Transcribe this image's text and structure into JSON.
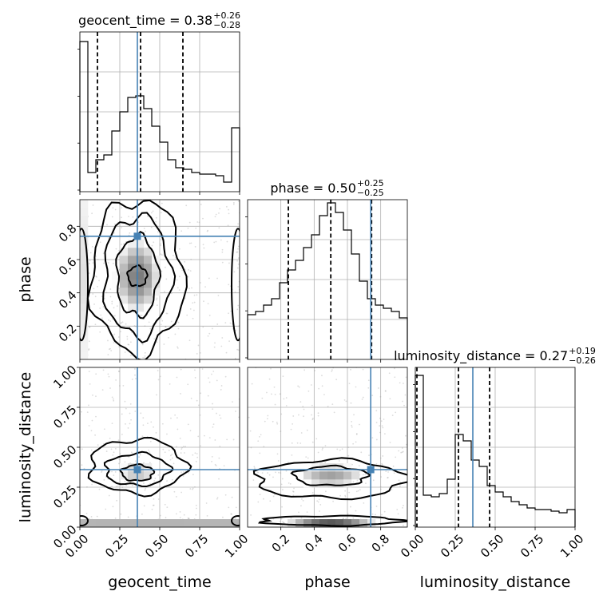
{
  "chart_data": {
    "type": "corner",
    "parameters": [
      "geocent_time",
      "phase",
      "luminosity_distance"
    ],
    "titles": [
      {
        "name": "geocent_time",
        "median": "0.38",
        "plus": "+0.26",
        "minus": "−0.28"
      },
      {
        "name": "phase",
        "median": "0.50",
        "plus": "+0.25",
        "minus": "−0.25"
      },
      {
        "name": "luminosity_distance",
        "median": "0.27",
        "plus": "+0.19",
        "minus": "−0.26"
      }
    ],
    "ranges": {
      "geocent_time": [
        0,
        1
      ],
      "phase": [
        0,
        0.96
      ],
      "luminosity_distance": [
        0,
        1
      ]
    },
    "ticks": {
      "geocent_time": [
        "0.00",
        "0.25",
        "0.50",
        "0.75",
        "1.00"
      ],
      "phase_x": [
        "0.2",
        "0.4",
        "0.6",
        "0.8"
      ],
      "phase_y": [
        "0.2",
        "0.4",
        "0.6",
        "0.8"
      ],
      "luminosity_distance": [
        "0.00",
        "0.25",
        "0.50",
        "0.75",
        "1.00"
      ]
    },
    "truth": {
      "geocent_time": 0.36,
      "phase": 0.74,
      "luminosity_distance": 0.36
    },
    "quantiles": {
      "geocent_time": [
        0.11,
        0.38,
        0.645
      ],
      "phase": [
        0.245,
        0.5,
        0.745
      ],
      "luminosity_distance": [
        0.01,
        0.27,
        0.465
      ]
    },
    "histograms": {
      "geocent_time": [
        0.94,
        0.12,
        0.2,
        0.23,
        0.38,
        0.5,
        0.59,
        0.6,
        0.52,
        0.41,
        0.31,
        0.2,
        0.15,
        0.14,
        0.12,
        0.11,
        0.11,
        0.1,
        0.06,
        0.4
      ],
      "phase": [
        0.28,
        0.3,
        0.34,
        0.38,
        0.48,
        0.56,
        0.62,
        0.7,
        0.78,
        0.9,
        0.98,
        0.92,
        0.81,
        0.66,
        0.49,
        0.38,
        0.34,
        0.32,
        0.3,
        0.26
      ],
      "luminosity_distance": [
        0.95,
        0.2,
        0.19,
        0.21,
        0.3,
        0.58,
        0.54,
        0.42,
        0.38,
        0.26,
        0.22,
        0.19,
        0.16,
        0.14,
        0.12,
        0.11,
        0.11,
        0.1,
        0.09,
        0.11
      ]
    },
    "grid": true
  }
}
